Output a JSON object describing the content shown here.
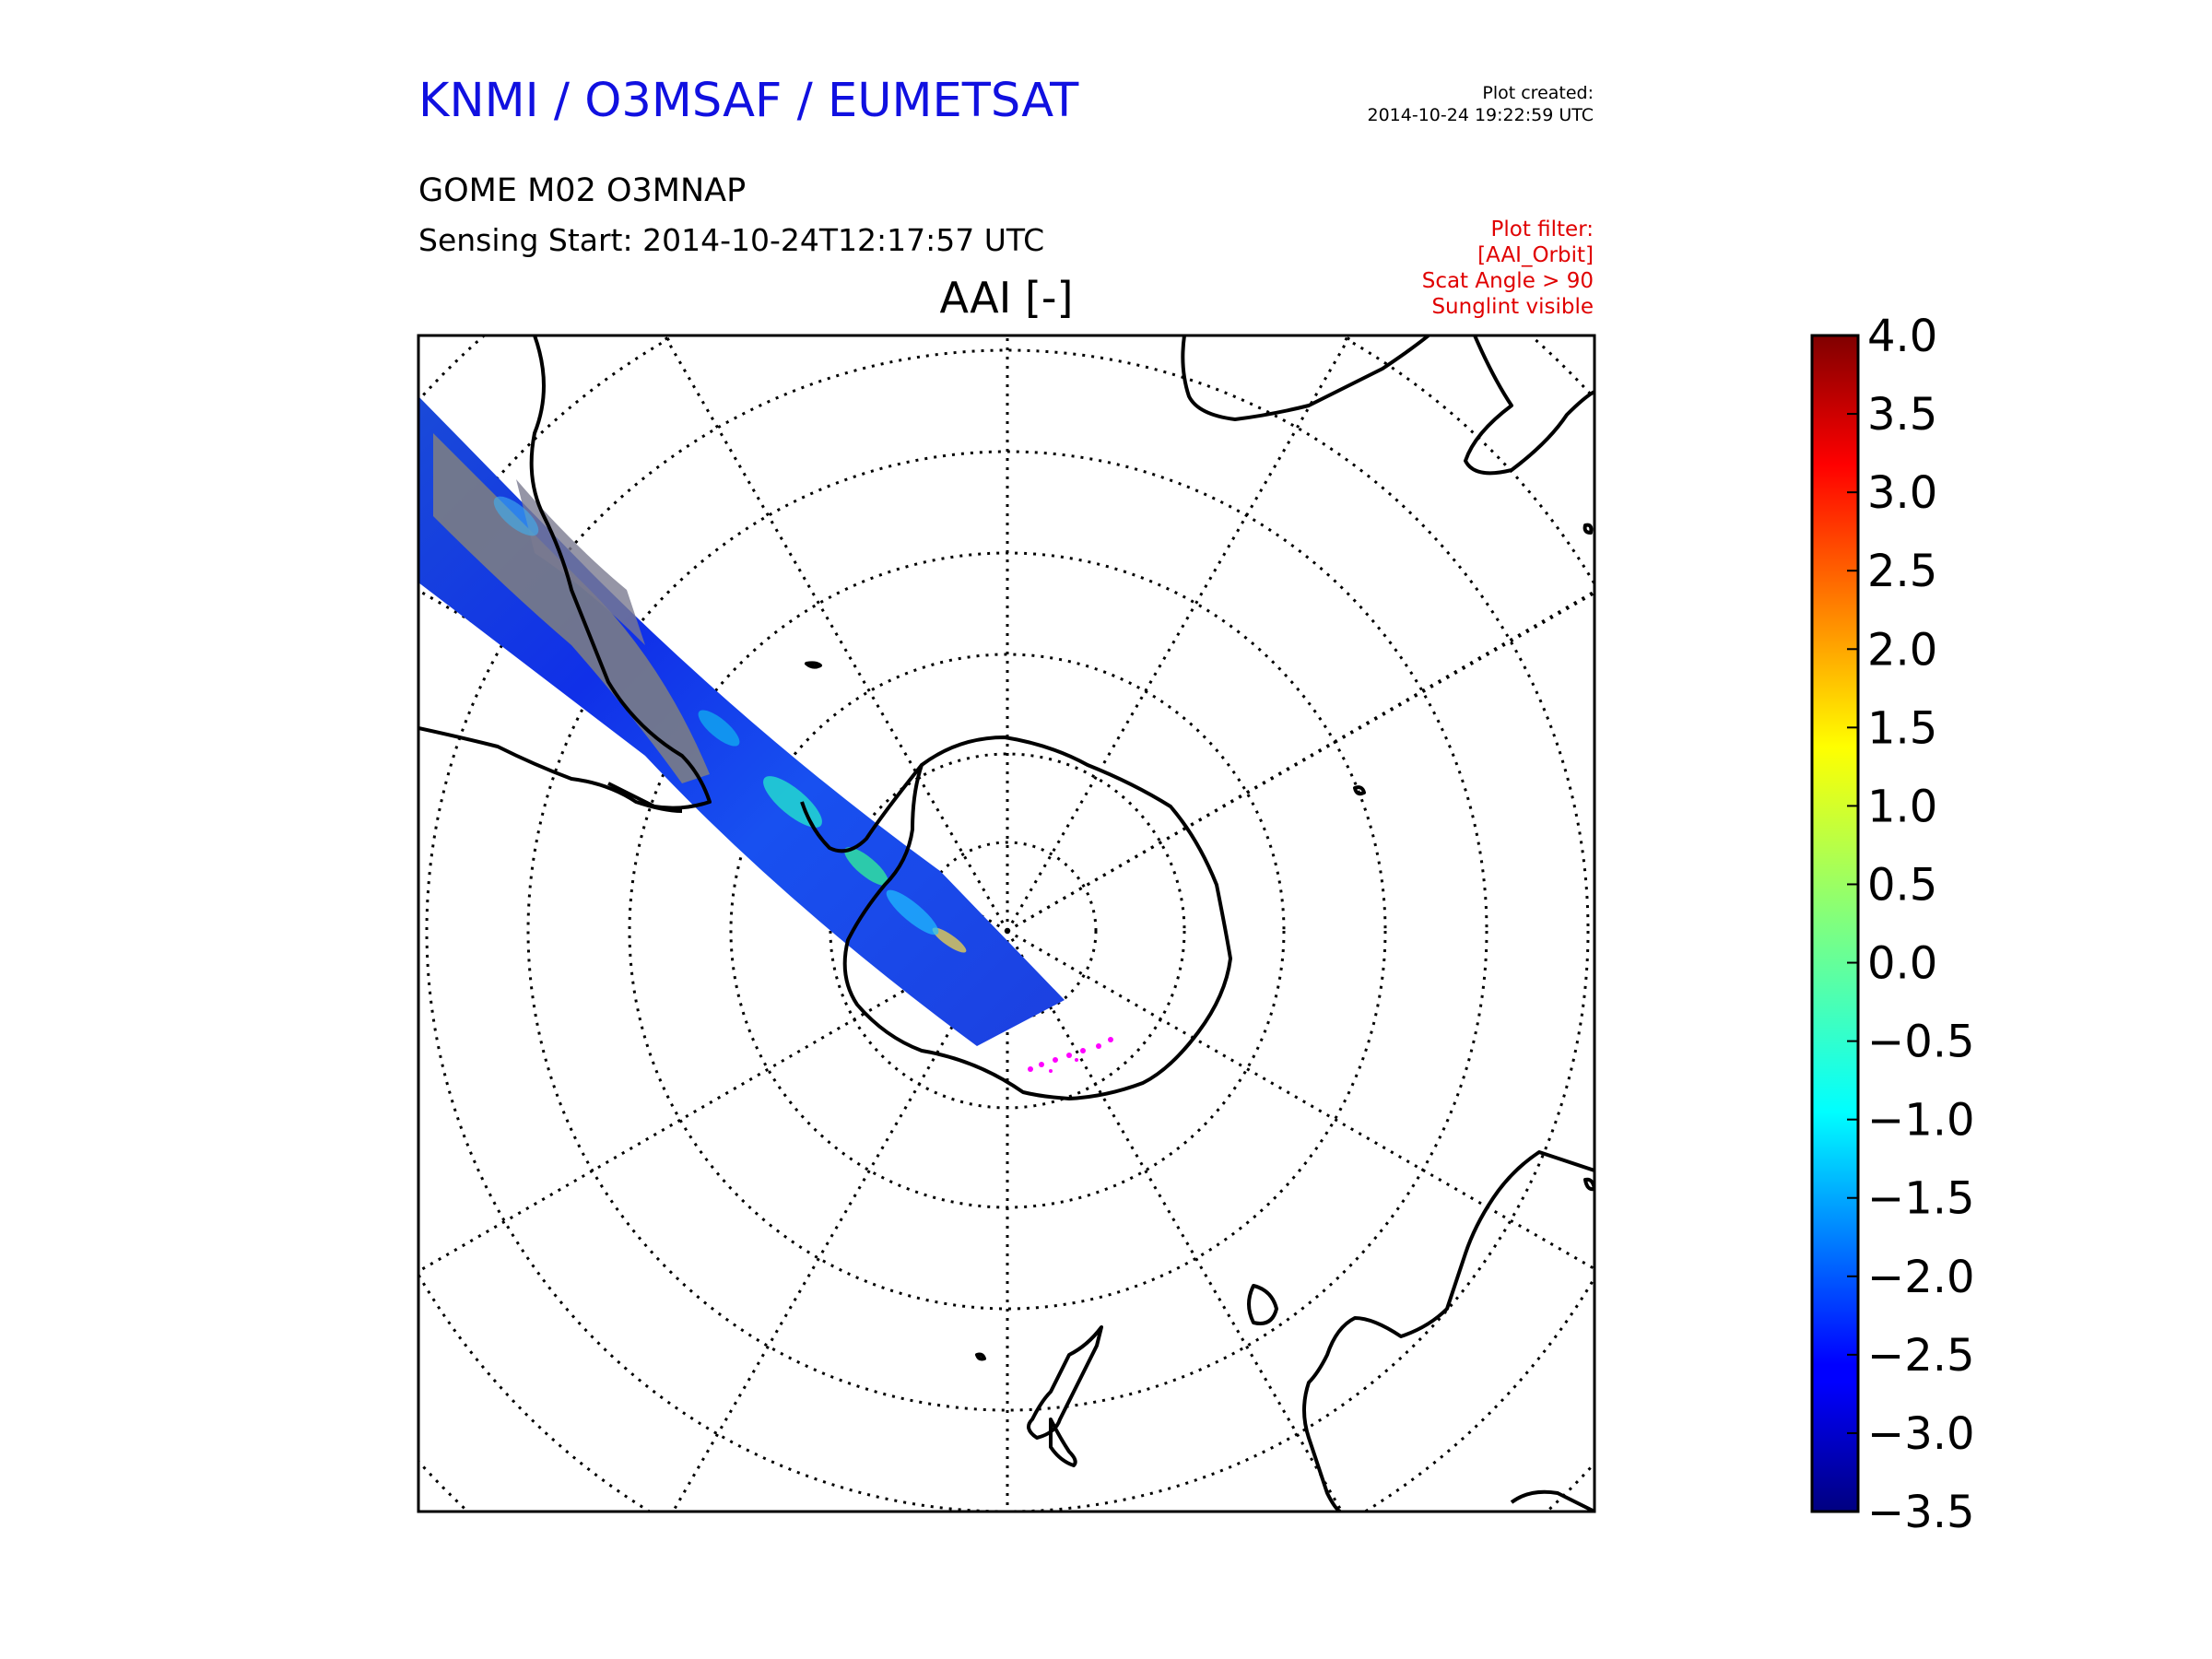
{
  "header": {
    "org_title": "KNMI / O3MSAF / EUMETSAT",
    "created_label": "Plot created:",
    "created_value": "2014-10-24 19:22:59 UTC",
    "product": "GOME M02 O3MNAP",
    "sensing_start": "Sensing Start: 2014-10-24T12:17:57 UTC"
  },
  "filter": {
    "label": "Plot filter:",
    "orbit": "[AAI_Orbit]",
    "scat_angle": "Scat Angle > 90",
    "sunglint": "Sunglint visible"
  },
  "map": {
    "title": "AAI [-]",
    "projection": "south-polar-stereographic",
    "colors": {
      "swath_low": "#1030e0",
      "swath_mid": "#00c8ff",
      "cloud_flag": "#808080",
      "coastline": "#000000",
      "graticule": "#000000",
      "outliers": "#ff00ff"
    }
  },
  "colorbar": {
    "ticks": [
      "4.0",
      "3.5",
      "3.0",
      "2.5",
      "2.0",
      "1.5",
      "1.0",
      "0.5",
      "0.0",
      "−0.5",
      "−1.0",
      "−1.5",
      "−2.0",
      "−2.5",
      "−3.0",
      "−3.5"
    ],
    "range": [
      -3.5,
      4.0
    ],
    "colormap": "jet"
  }
}
